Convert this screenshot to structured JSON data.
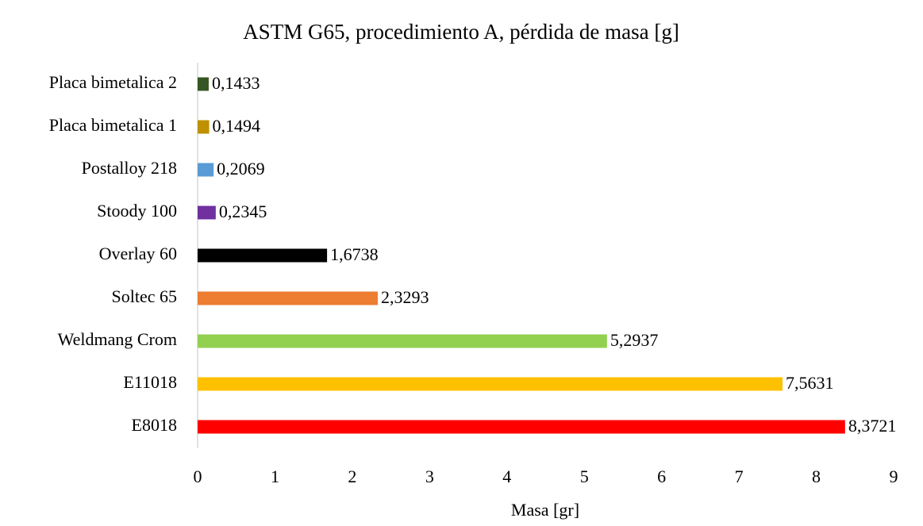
{
  "chart_data": {
    "type": "bar",
    "orientation": "horizontal",
    "title": "ASTM G65, procedimiento A, pérdida de masa [g]",
    "x_label": "Masa [gr]",
    "categories": [
      "Placa bimetalica 2",
      "Placa bimetalica 1",
      "Postalloy 218",
      "Stoody 100",
      "Overlay 60",
      "Soltec 65",
      "Weldmang Crom",
      "E11018",
      "E8018"
    ],
    "values": [
      0.1433,
      0.1494,
      0.2069,
      0.2345,
      1.6738,
      2.3293,
      5.2937,
      7.5631,
      8.3721
    ],
    "value_labels": [
      "0,1433",
      "0,1494",
      "0,2069",
      "0,2345",
      "1,6738",
      "2,3293",
      "5,2937",
      "7,5631",
      "8,3721"
    ],
    "colors": [
      "#375623",
      "#bf9000",
      "#5b9bd5",
      "#7030a0",
      "#000000",
      "#ed7d31",
      "#92d050",
      "#ffc000",
      "#ff0000"
    ],
    "xlim": [
      0,
      9
    ],
    "xticks": [
      0,
      1,
      2,
      3,
      4,
      5,
      6,
      7,
      8,
      9
    ],
    "grid": false
  }
}
